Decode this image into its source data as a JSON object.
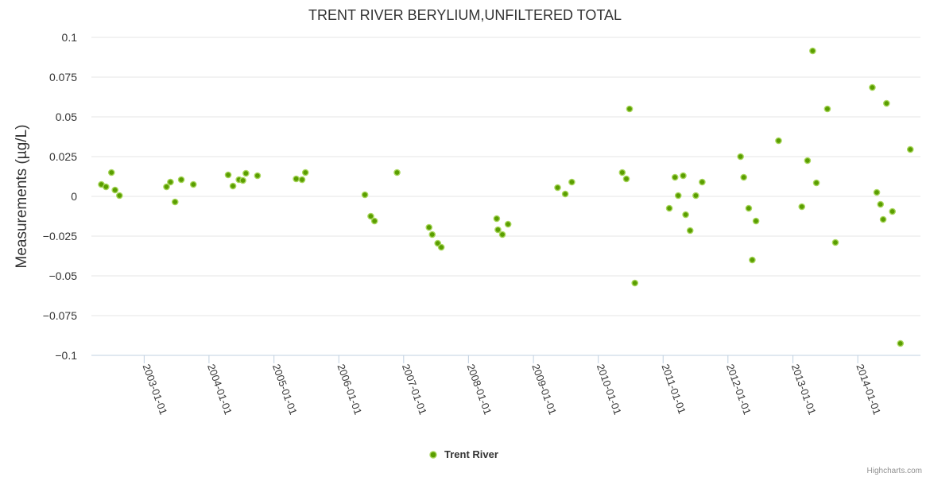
{
  "chart_data": {
    "type": "scatter",
    "title": "TRENT RIVER BERYLIUM,UNFILTERED TOTAL",
    "ylabel": "Measurements (µg/L)",
    "xlabel": "",
    "ylim": [
      -0.1,
      0.1
    ],
    "yticks": [
      0.1,
      0.075,
      0.05,
      0.025,
      0,
      -0.025,
      -0.05,
      -0.075,
      -0.1
    ],
    "ytick_labels": [
      "0.1",
      "0.075",
      "0.05",
      "0.025",
      "0",
      "−0.025",
      "−0.05",
      "−0.075",
      "−0.1"
    ],
    "xlim": [
      "2002-03-10",
      "2014-12-20"
    ],
    "xticks": [
      "2003-01-01",
      "2004-01-01",
      "2005-01-01",
      "2006-01-01",
      "2007-01-01",
      "2008-01-01",
      "2009-01-01",
      "2010-01-01",
      "2011-01-01",
      "2012-01-01",
      "2013-01-01",
      "2014-01-01"
    ],
    "grid": true,
    "legend_position": "bottom-center",
    "series": [
      {
        "name": "Trent River",
        "color": "#5a9e00",
        "points": [
          {
            "x": "2002-05-05",
            "y": 0.0075
          },
          {
            "x": "2002-05-31",
            "y": 0.006
          },
          {
            "x": "2002-07-01",
            "y": 0.015
          },
          {
            "x": "2002-07-21",
            "y": 0.004
          },
          {
            "x": "2002-08-15",
            "y": 0.0005
          },
          {
            "x": "2003-05-07",
            "y": 0.006
          },
          {
            "x": "2003-05-29",
            "y": 0.009
          },
          {
            "x": "2003-06-24",
            "y": -0.0035
          },
          {
            "x": "2003-07-29",
            "y": 0.0105
          },
          {
            "x": "2003-10-05",
            "y": 0.0075
          },
          {
            "x": "2004-04-18",
            "y": 0.0135
          },
          {
            "x": "2004-05-15",
            "y": 0.0065
          },
          {
            "x": "2004-06-18",
            "y": 0.0105
          },
          {
            "x": "2004-07-10",
            "y": 0.01
          },
          {
            "x": "2004-07-27",
            "y": 0.0145
          },
          {
            "x": "2004-09-30",
            "y": 0.013
          },
          {
            "x": "2005-05-06",
            "y": 0.011
          },
          {
            "x": "2005-06-08",
            "y": 0.0105
          },
          {
            "x": "2005-06-27",
            "y": 0.015
          },
          {
            "x": "2006-05-28",
            "y": 0.001
          },
          {
            "x": "2006-06-30",
            "y": -0.0125
          },
          {
            "x": "2006-07-21",
            "y": -0.0155
          },
          {
            "x": "2006-11-25",
            "y": 0.015
          },
          {
            "x": "2007-05-24",
            "y": -0.0195
          },
          {
            "x": "2007-06-11",
            "y": -0.024
          },
          {
            "x": "2007-07-12",
            "y": -0.0295
          },
          {
            "x": "2007-08-01",
            "y": -0.032
          },
          {
            "x": "2008-06-08",
            "y": -0.014
          },
          {
            "x": "2008-06-15",
            "y": -0.021
          },
          {
            "x": "2008-07-10",
            "y": -0.024
          },
          {
            "x": "2008-08-11",
            "y": -0.0175
          },
          {
            "x": "2009-05-17",
            "y": 0.0055
          },
          {
            "x": "2009-06-29",
            "y": 0.0015
          },
          {
            "x": "2009-08-05",
            "y": 0.009
          },
          {
            "x": "2010-05-16",
            "y": 0.015
          },
          {
            "x": "2010-06-08",
            "y": 0.011
          },
          {
            "x": "2010-06-26",
            "y": 0.055
          },
          {
            "x": "2010-07-26",
            "y": -0.0545
          },
          {
            "x": "2011-02-05",
            "y": -0.0075
          },
          {
            "x": "2011-03-09",
            "y": 0.012
          },
          {
            "x": "2011-03-27",
            "y": 0.0005
          },
          {
            "x": "2011-04-24",
            "y": 0.013
          },
          {
            "x": "2011-05-08",
            "y": -0.0115
          },
          {
            "x": "2011-06-02",
            "y": -0.0215
          },
          {
            "x": "2011-07-04",
            "y": 0.0005
          },
          {
            "x": "2011-08-09",
            "y": 0.009
          },
          {
            "x": "2012-03-12",
            "y": 0.025
          },
          {
            "x": "2012-03-30",
            "y": 0.012
          },
          {
            "x": "2012-04-27",
            "y": -0.0075
          },
          {
            "x": "2012-05-17",
            "y": -0.04
          },
          {
            "x": "2012-06-07",
            "y": -0.0155
          },
          {
            "x": "2012-10-12",
            "y": 0.035
          },
          {
            "x": "2013-02-20",
            "y": -0.0065
          },
          {
            "x": "2013-03-24",
            "y": 0.0225
          },
          {
            "x": "2013-04-22",
            "y": 0.0915
          },
          {
            "x": "2013-05-13",
            "y": 0.0085
          },
          {
            "x": "2013-07-14",
            "y": 0.055
          },
          {
            "x": "2013-08-28",
            "y": -0.029
          },
          {
            "x": "2014-03-24",
            "y": 0.0685
          },
          {
            "x": "2014-04-18",
            "y": 0.0025
          },
          {
            "x": "2014-05-09",
            "y": -0.005
          },
          {
            "x": "2014-05-24",
            "y": -0.0145
          },
          {
            "x": "2014-06-12",
            "y": 0.0585
          },
          {
            "x": "2014-07-15",
            "y": -0.0095
          },
          {
            "x": "2014-08-29",
            "y": -0.0925
          },
          {
            "x": "2014-10-24",
            "y": 0.0295
          }
        ]
      }
    ]
  },
  "credits": "Highcharts.com"
}
